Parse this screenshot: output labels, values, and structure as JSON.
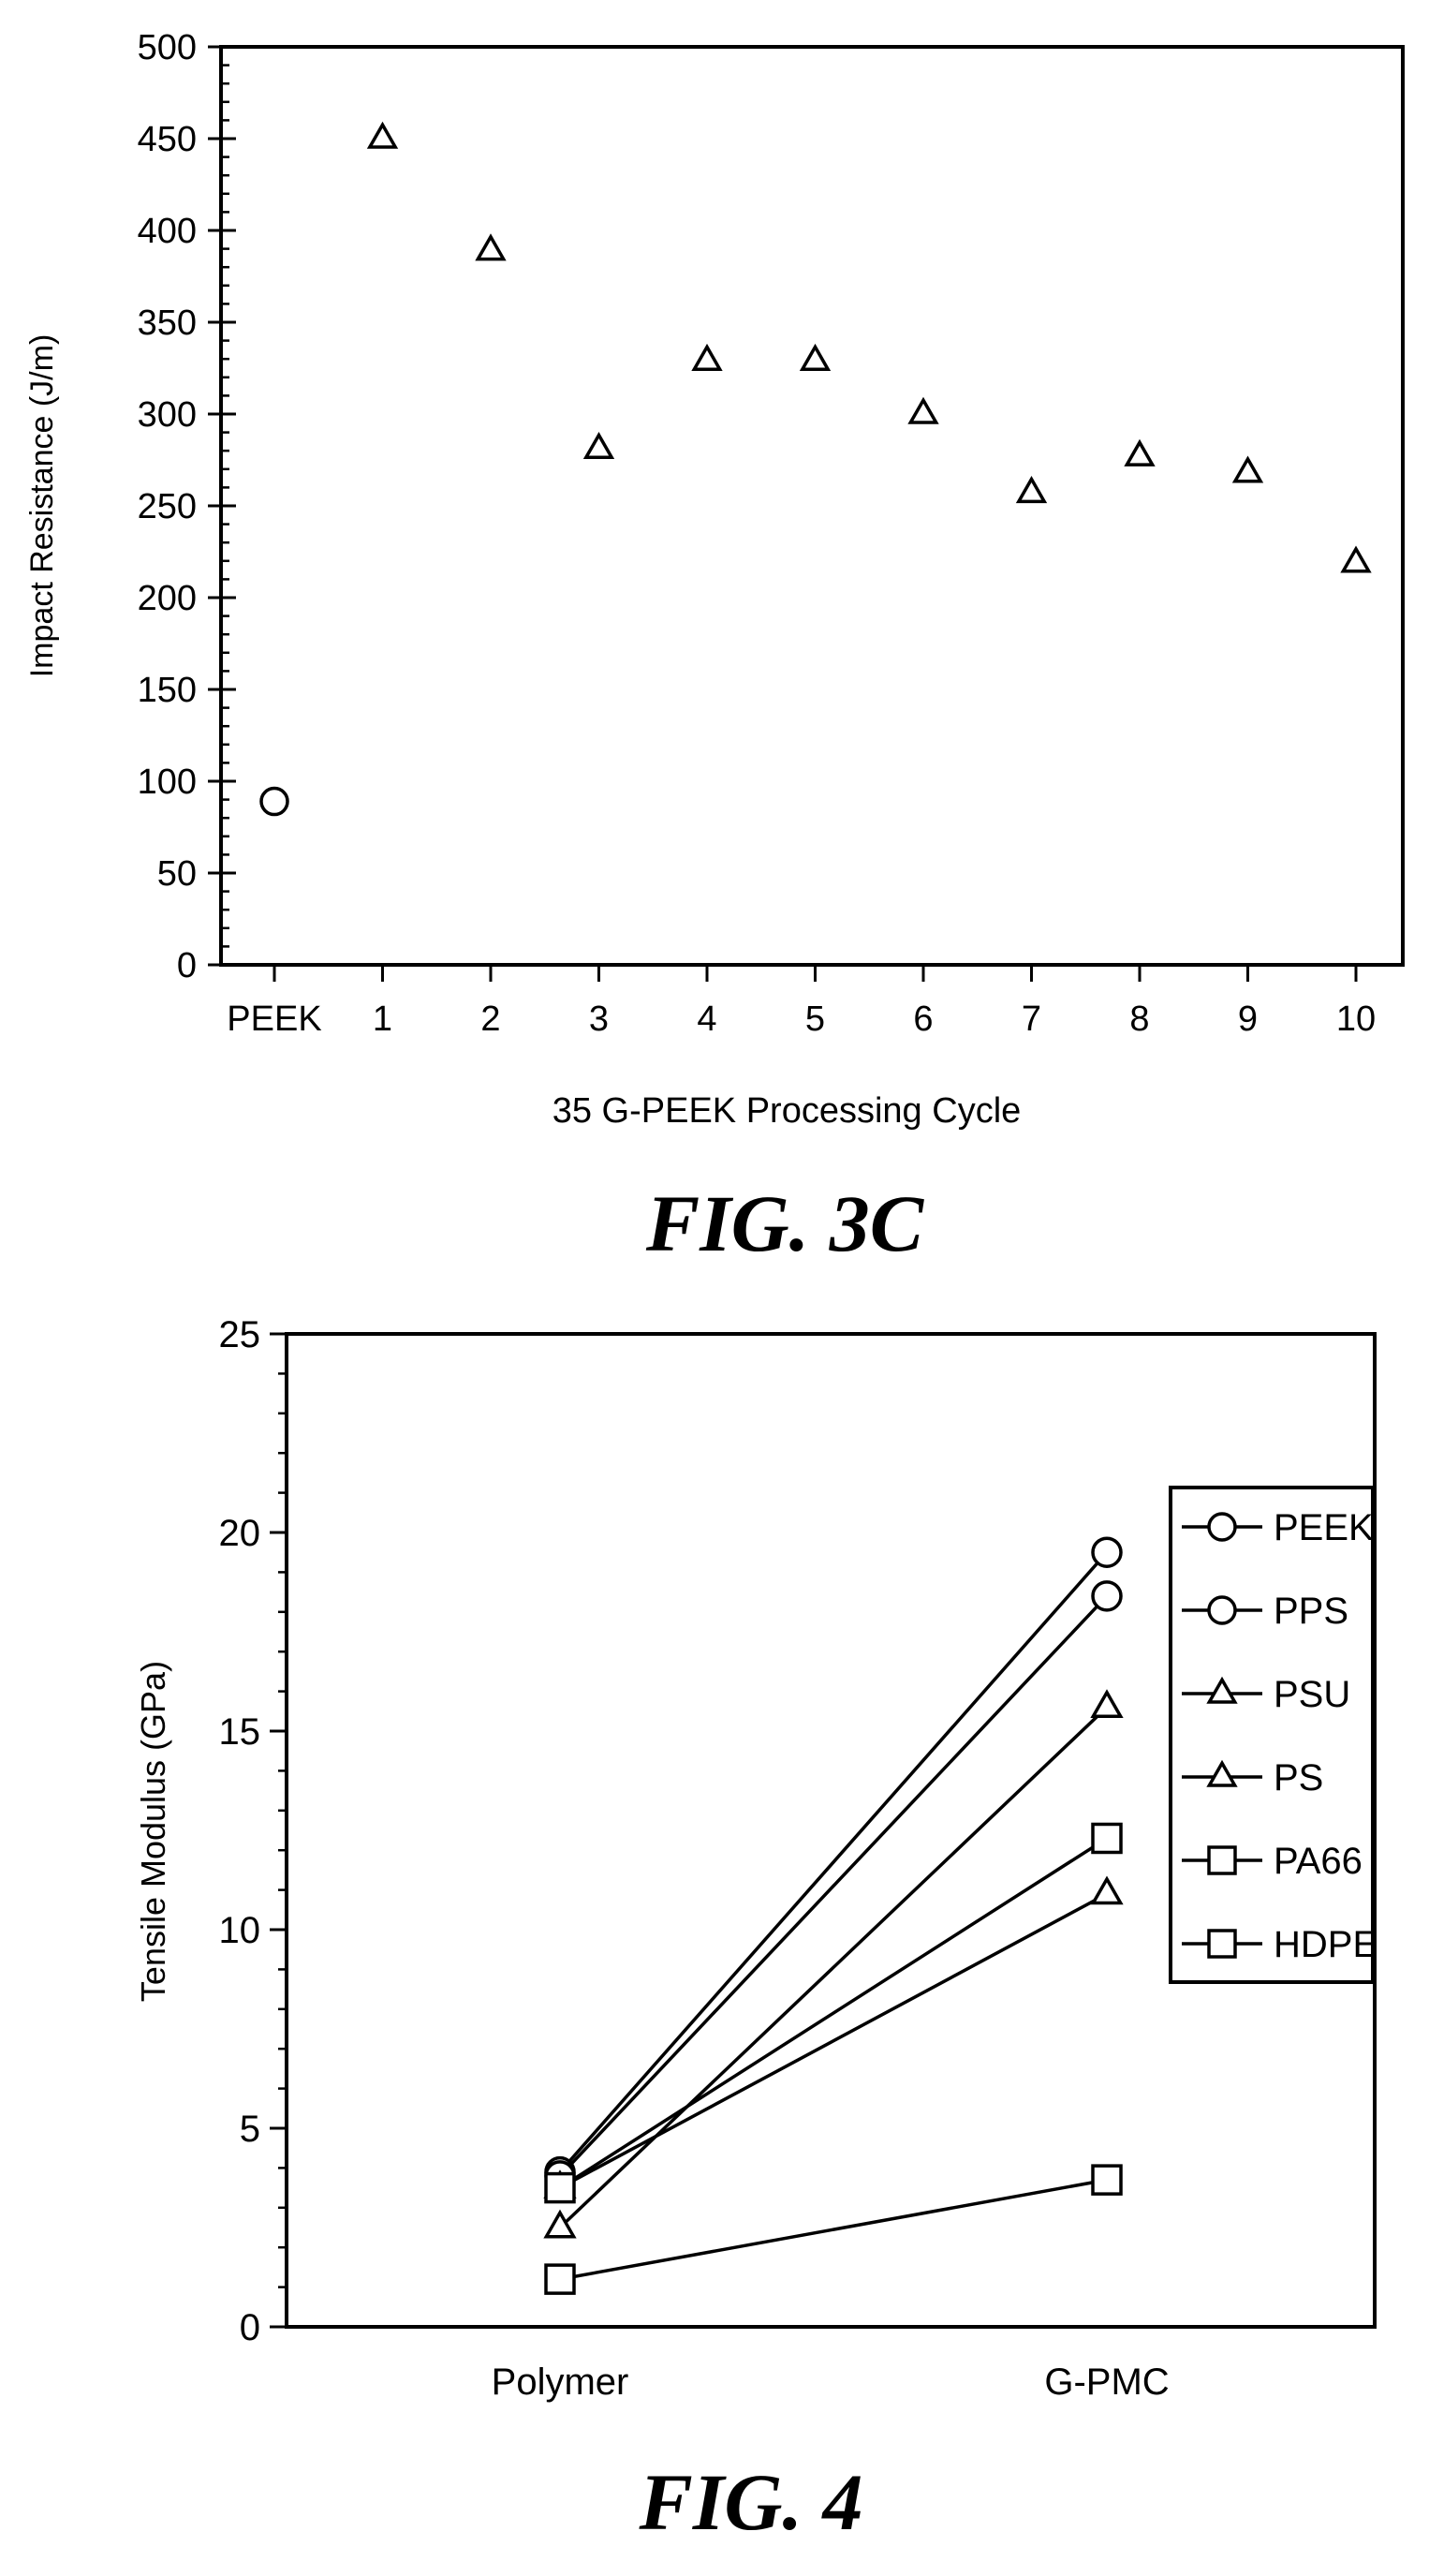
{
  "chart_data": [
    {
      "type": "scatter",
      "caption": "FIG. 3C",
      "xlabel": "35 G-PEEK Processing Cycle",
      "ylabel": "Impact Resistance (J/m)",
      "categories": [
        "PEEK",
        "1",
        "2",
        "3",
        "4",
        "5",
        "6",
        "7",
        "8",
        "9",
        "10"
      ],
      "ylim": [
        0,
        500
      ],
      "yticks": [
        0,
        50,
        100,
        150,
        200,
        250,
        300,
        350,
        400,
        450,
        500
      ],
      "y_minor_step": 10,
      "grid": false,
      "series": [
        {
          "marker": "circle",
          "points": [
            {
              "x": "PEEK",
              "y": 89
            }
          ]
        },
        {
          "marker": "triangle",
          "points": [
            {
              "x": "1",
              "y": 450
            },
            {
              "x": "2",
              "y": 389
            },
            {
              "x": "3",
              "y": 281
            },
            {
              "x": "4",
              "y": 329
            },
            {
              "x": "5",
              "y": 329
            },
            {
              "x": "6",
              "y": 300
            },
            {
              "x": "7",
              "y": 257
            },
            {
              "x": "8",
              "y": 277
            },
            {
              "x": "9",
              "y": 268
            },
            {
              "x": "10",
              "y": 219
            }
          ]
        }
      ]
    },
    {
      "type": "line",
      "caption": "FIG. 4",
      "xlabel": "",
      "ylabel": "Tensile Modulus (GPa)",
      "categories": [
        "Polymer",
        "G-PMC"
      ],
      "ylim": [
        0,
        25
      ],
      "yticks": [
        0,
        5,
        10,
        15,
        20,
        25
      ],
      "y_minor_step": 1,
      "grid": false,
      "legend": "right",
      "series": [
        {
          "name": "PEEK",
          "marker": "circle",
          "values": [
            3.9,
            19.5
          ]
        },
        {
          "name": "PPS",
          "marker": "circle",
          "values": [
            3.8,
            18.4
          ]
        },
        {
          "name": "PSU",
          "marker": "triangle",
          "values": [
            2.5,
            15.6
          ]
        },
        {
          "name": "PS",
          "marker": "triangle",
          "values": [
            3.5,
            10.9
          ]
        },
        {
          "name": "PA66",
          "marker": "square",
          "values": [
            3.5,
            12.3
          ]
        },
        {
          "name": "HDPE",
          "marker": "square",
          "values": [
            1.2,
            3.7
          ]
        }
      ]
    }
  ]
}
